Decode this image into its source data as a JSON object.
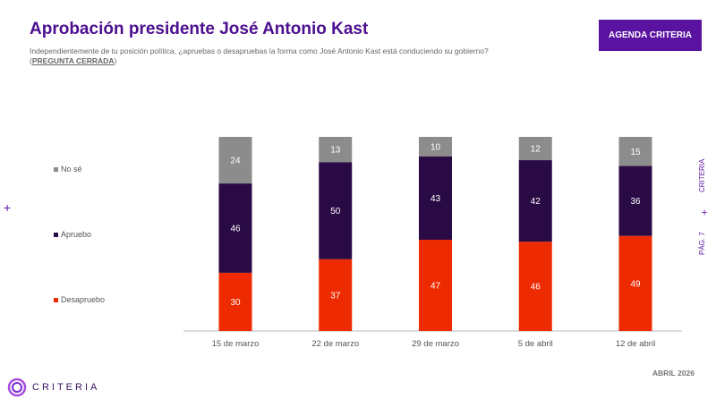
{
  "header": {
    "title": "Aprobación presidente José Antonio Kast",
    "subtitle": "Independientemente de tu posición política, ¿apruebas o desapruebas la forma como José Antonio Kast está conduciendo su gobierno? (",
    "subtitle_emph": "PREGUNTA CERRADA",
    "subtitle_end": ")",
    "badge": "AGENDA CRITERIA"
  },
  "side": {
    "brand": "CRITERIA",
    "page": "PÁG. 7",
    "plus": "+"
  },
  "footer": {
    "date": "ABRIL 2026",
    "logo": "CRITERIA"
  },
  "chart_data": {
    "type": "bar",
    "stacked": true,
    "categories": [
      "15 de marzo",
      "22 de marzo",
      "29 de marzo",
      "5 de abril",
      "12 de abril"
    ],
    "series": [
      {
        "name": "Desapruebo",
        "color": "#ee2a00",
        "values": [
          30,
          37,
          47,
          46,
          49
        ]
      },
      {
        "name": "Apruebo",
        "color": "#2a0a45",
        "values": [
          46,
          50,
          43,
          42,
          36
        ]
      },
      {
        "name": "No sé",
        "color": "#8c8c8c",
        "values": [
          24,
          13,
          10,
          12,
          15
        ]
      }
    ],
    "ylim": [
      0,
      100
    ],
    "grid": false,
    "legend": "left"
  }
}
